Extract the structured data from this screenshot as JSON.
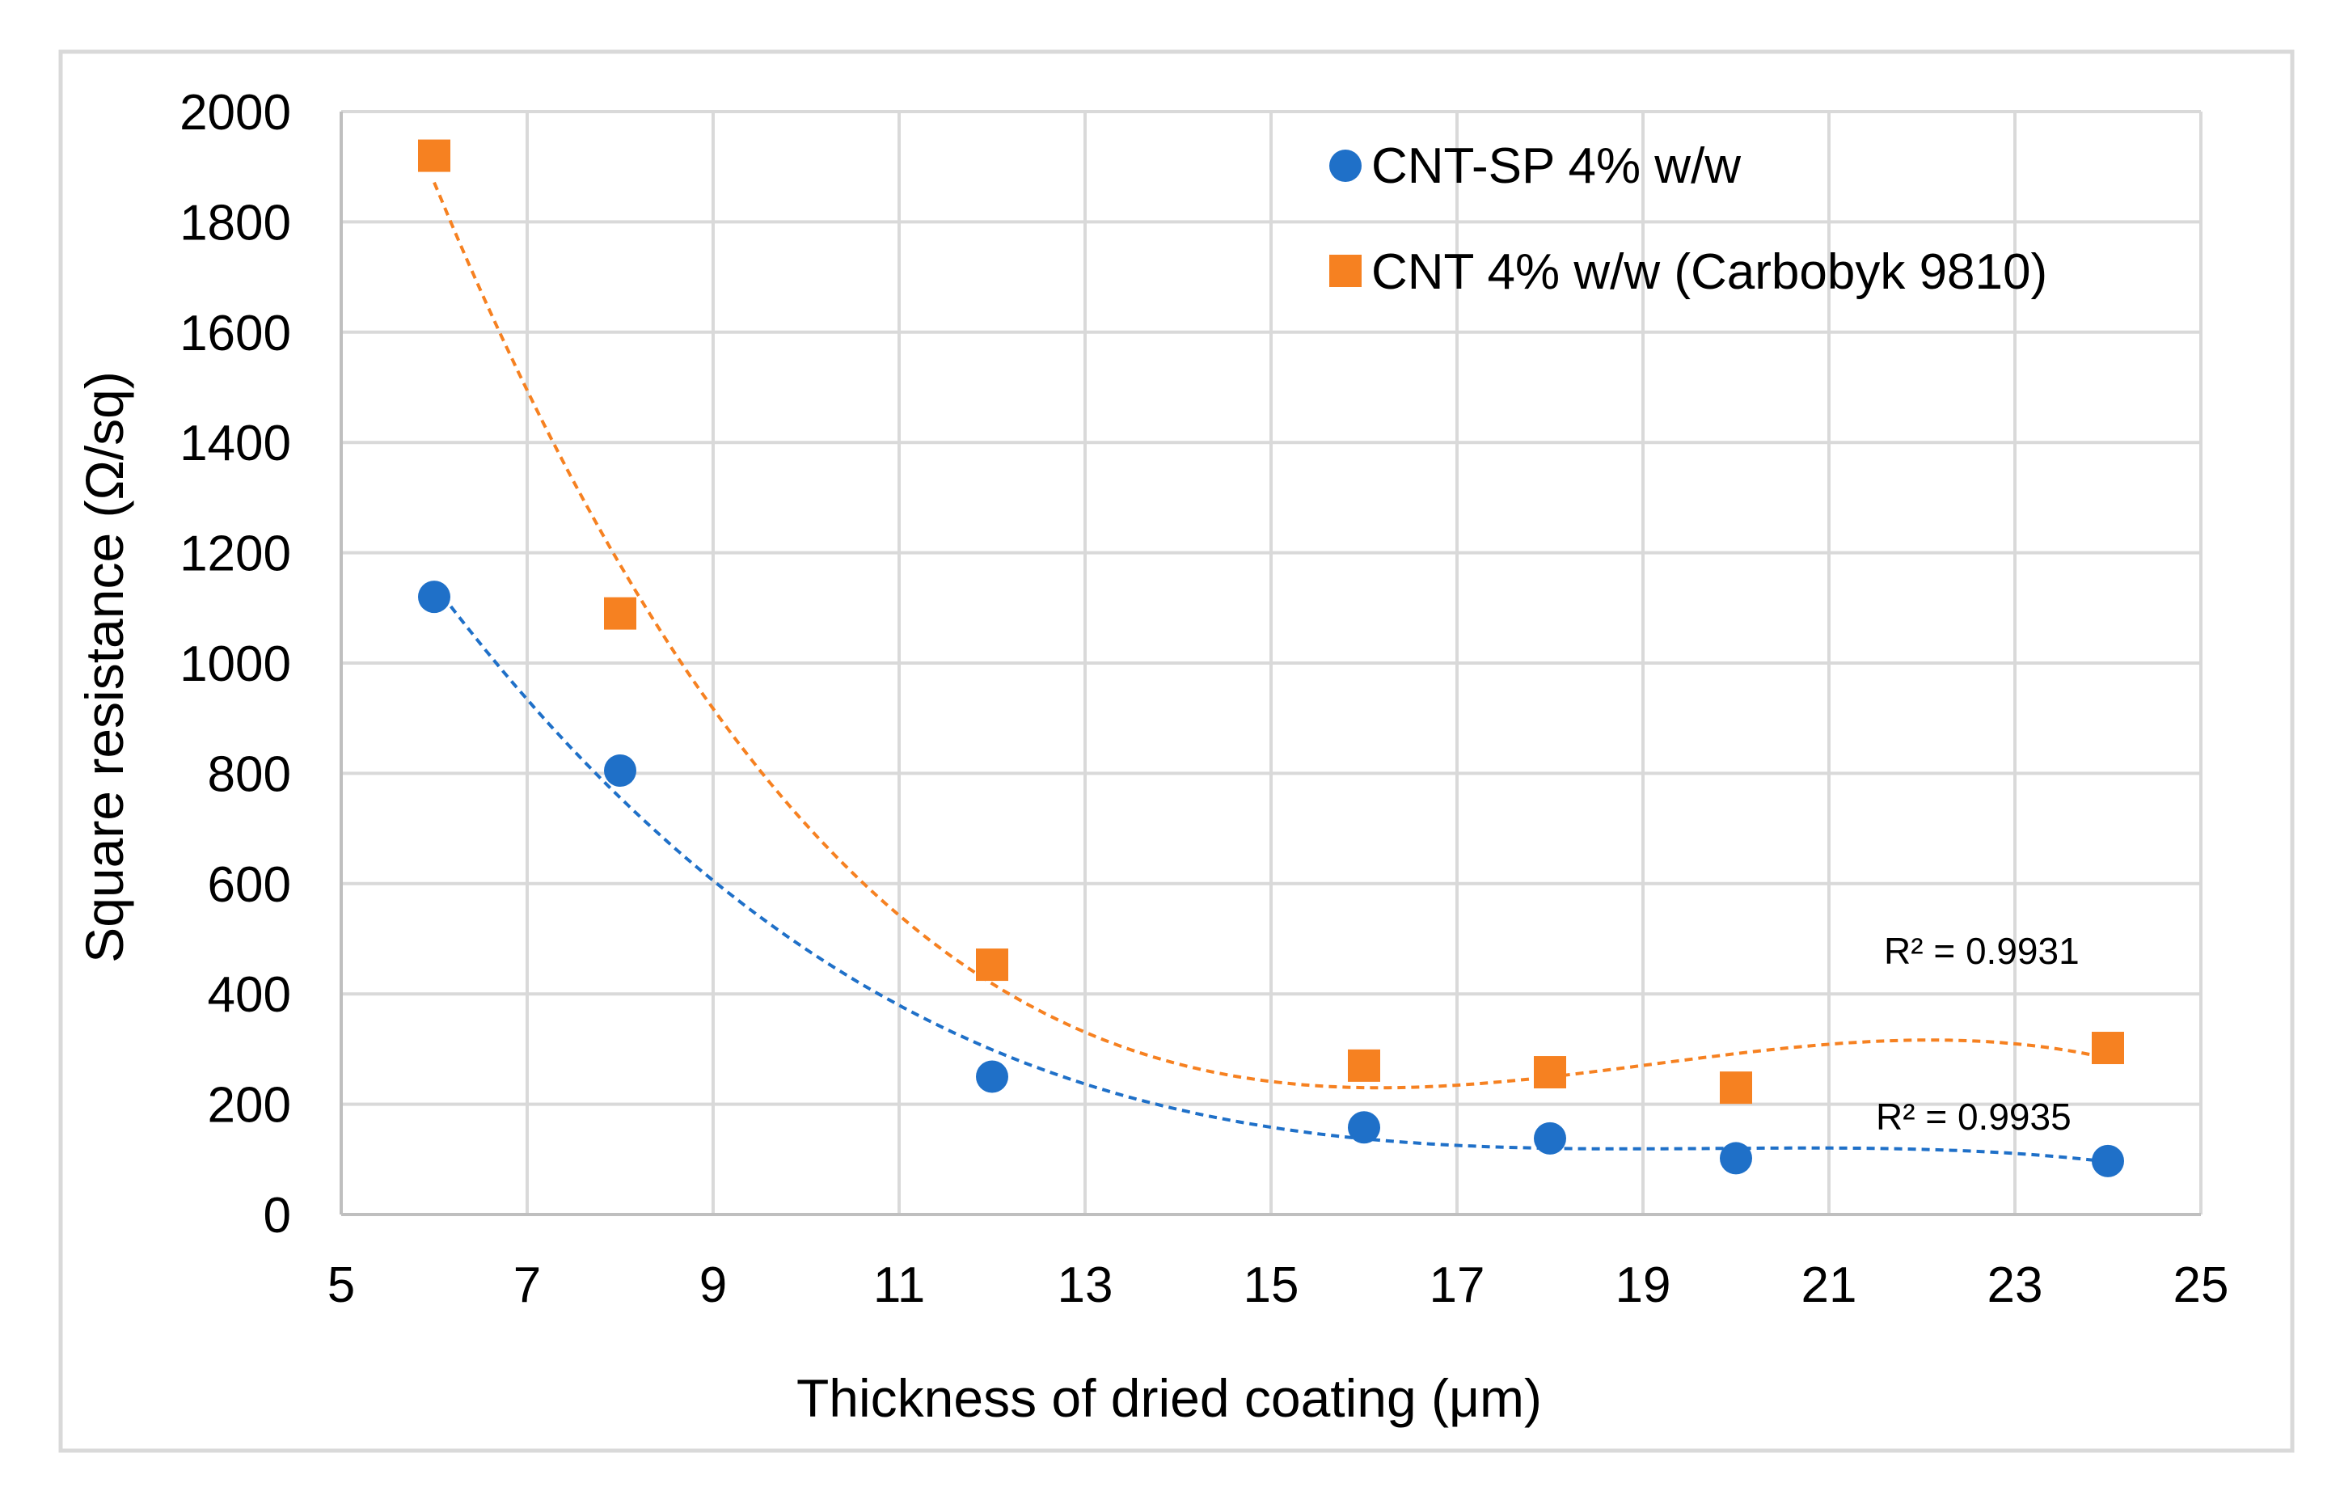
{
  "chart_data": {
    "type": "scatter",
    "title": "",
    "xlabel": "Thickness of dried coating (μm)",
    "ylabel": "Square resistance (Ω/sq)",
    "xlim": [
      5,
      25
    ],
    "ylim": [
      0,
      2000
    ],
    "x_ticks": [
      5,
      7,
      9,
      11,
      13,
      15,
      17,
      19,
      21,
      23,
      25
    ],
    "y_ticks": [
      0,
      200,
      400,
      600,
      800,
      1000,
      1200,
      1400,
      1600,
      1800,
      2000
    ],
    "x_tick_labels": [
      "5",
      "7",
      "9",
      "11",
      "13",
      "15",
      "17",
      "19",
      "21",
      "23",
      "25"
    ],
    "y_tick_labels": [
      "0",
      "200",
      "400",
      "600",
      "800",
      "1000",
      "1200",
      "1400",
      "1600",
      "1800",
      "2000"
    ],
    "grid": true,
    "legend_position": "top-right",
    "series": [
      {
        "name": "CNT-SP 4% w/w",
        "marker": "circle",
        "color": "#1F70C8",
        "x": [
          6,
          8,
          12,
          16,
          18,
          20,
          24
        ],
        "y": [
          1120,
          805,
          250,
          158,
          138,
          102,
          97
        ],
        "trendline_r2": "R² = 0.9935"
      },
      {
        "name": "CNT 4% w/w (Carbobyk 9810)",
        "marker": "square",
        "color": "#F68121",
        "x": [
          6,
          8,
          12,
          16,
          18,
          20,
          24
        ],
        "y": [
          1920,
          1090,
          453,
          270,
          258,
          230,
          302
        ],
        "trendline_r2": "R² = 0.9931"
      }
    ]
  }
}
